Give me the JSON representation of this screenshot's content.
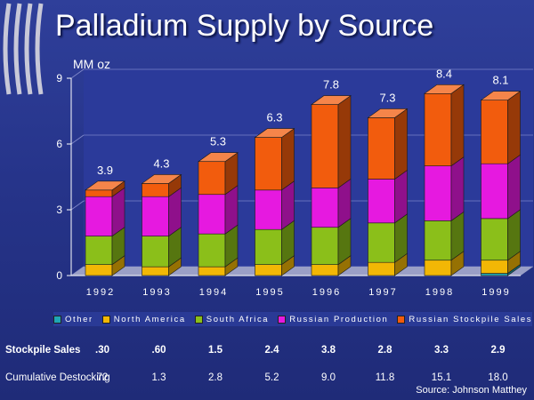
{
  "title": "Palladium Supply by Source",
  "source": "Source:  Johnson Matthey",
  "chart_data": {
    "type": "bar",
    "stacked": true,
    "ylabel": "MM oz",
    "ylim": [
      0,
      9
    ],
    "yticks": [
      "0",
      "3",
      "6",
      "9"
    ],
    "categories": [
      "1992",
      "1993",
      "1994",
      "1995",
      "1996",
      "1997",
      "1998",
      "1999"
    ],
    "totals": [
      "3.9",
      "4.3",
      "5.3",
      "6.3",
      "7.8",
      "7.3",
      "8.4",
      "8.1"
    ],
    "series": [
      {
        "name": "Other",
        "color": "#1fa6b4",
        "values": [
          0,
          0,
          0,
          0,
          0,
          0,
          0,
          0.1
        ]
      },
      {
        "name": "North America",
        "color": "#f2b705",
        "values": [
          0.5,
          0.4,
          0.4,
          0.5,
          0.5,
          0.6,
          0.7,
          0.6
        ]
      },
      {
        "name": "South Africa",
        "color": "#8bbf1a",
        "values": [
          1.3,
          1.4,
          1.5,
          1.6,
          1.7,
          1.8,
          1.8,
          1.9
        ]
      },
      {
        "name": "Russian Production",
        "color": "#e619e0",
        "values": [
          1.8,
          1.8,
          1.8,
          1.8,
          1.8,
          2.0,
          2.5,
          2.5
        ]
      },
      {
        "name": "Russian Stockpile Sales",
        "color": "#f25c0d",
        "values": [
          0.3,
          0.6,
          1.5,
          2.4,
          3.8,
          2.8,
          3.3,
          2.9
        ]
      }
    ],
    "legend_position": "bottom"
  },
  "table": {
    "stockpile_label": "Stockpile Sales",
    "stockpile_values": [
      ".30",
      ".60",
      "1.5",
      "2.4",
      "3.8",
      "2.8",
      "3.3",
      "2.9"
    ],
    "cumulative_label": "Cumulative Destocking",
    "cumulative_values": [
      "72",
      "1.3",
      "2.8",
      "5.2",
      "9.0",
      "11.8",
      "15.1",
      "18.0"
    ]
  },
  "colors": {
    "background": "#26348a",
    "floor": "#9a9fc6"
  }
}
